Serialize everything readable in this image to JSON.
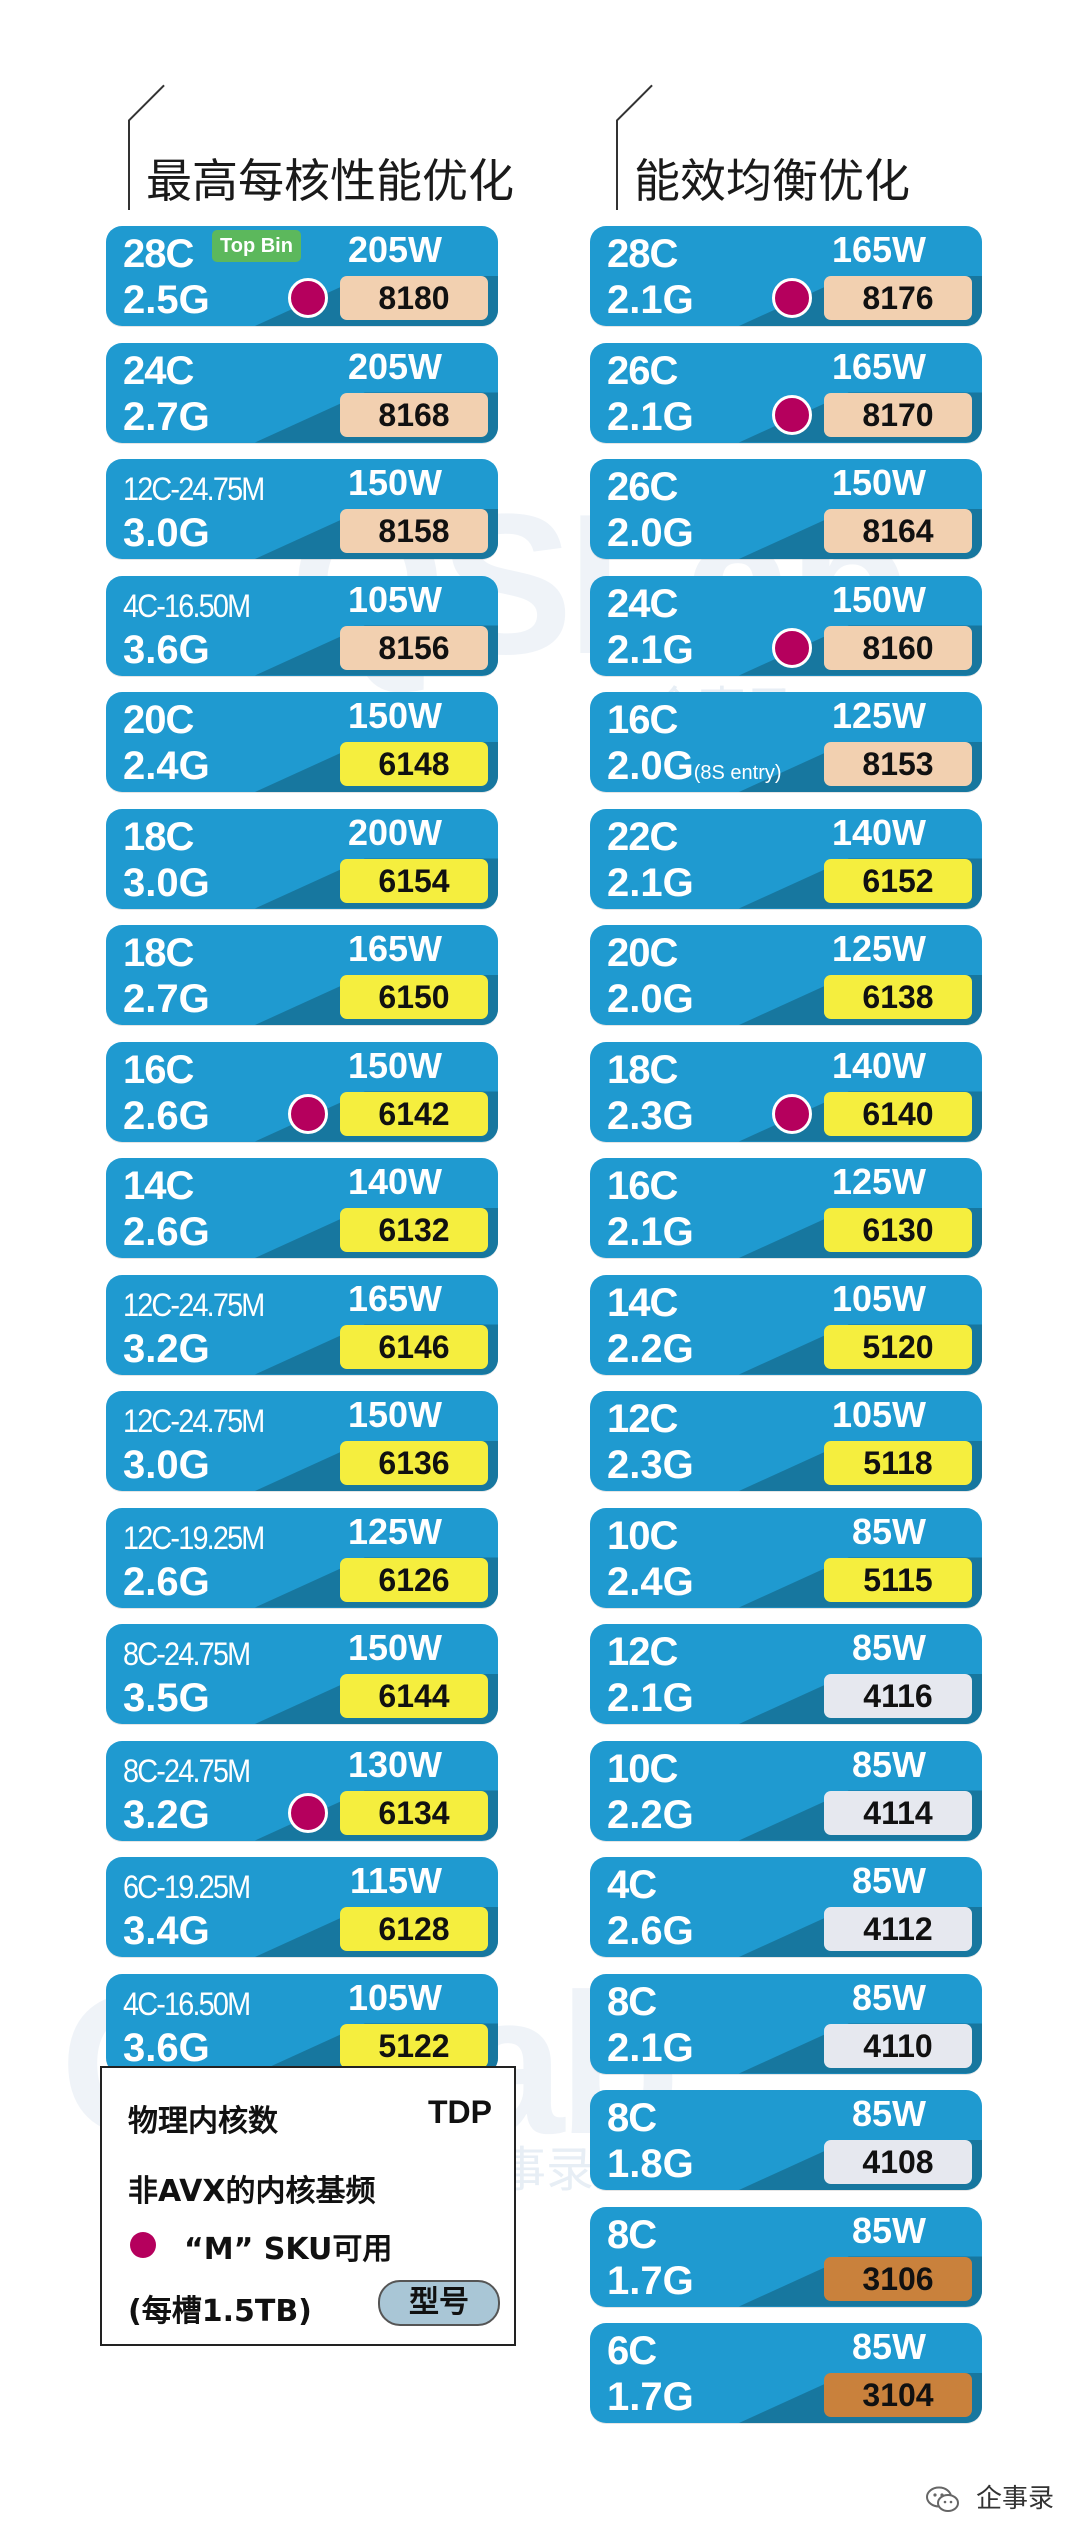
{
  "headers": {
    "left": "最高每核性能优化",
    "right": "能效均衡优化"
  },
  "watermark": {
    "text": "QSLab",
    "cn": "企事录"
  },
  "left_cards": [
    {
      "cores": "28C",
      "freq": "2.5G",
      "tdp": "205W",
      "model": "8180",
      "tier": "platinum",
      "m": true,
      "badge": "Top Bin"
    },
    {
      "cores": "24C",
      "freq": "2.7G",
      "tdp": "205W",
      "model": "8168",
      "tier": "platinum",
      "m": false
    },
    {
      "cores": "12C-24.75M",
      "freq": "3.0G",
      "tdp": "150W",
      "model": "8158",
      "tier": "platinum",
      "m": false
    },
    {
      "cores": "4C-16.50M",
      "freq": "3.6G",
      "tdp": "105W",
      "model": "8156",
      "tier": "platinum",
      "m": false
    },
    {
      "cores": "20C",
      "freq": "2.4G",
      "tdp": "150W",
      "model": "6148",
      "tier": "gold",
      "m": false
    },
    {
      "cores": "18C",
      "freq": "3.0G",
      "tdp": "200W",
      "model": "6154",
      "tier": "gold",
      "m": false
    },
    {
      "cores": "18C",
      "freq": "2.7G",
      "tdp": "165W",
      "model": "6150",
      "tier": "gold",
      "m": false
    },
    {
      "cores": "16C",
      "freq": "2.6G",
      "tdp": "150W",
      "model": "6142",
      "tier": "gold",
      "m": true
    },
    {
      "cores": "14C",
      "freq": "2.6G",
      "tdp": "140W",
      "model": "6132",
      "tier": "gold",
      "m": false
    },
    {
      "cores": "12C-24.75M",
      "freq": "3.2G",
      "tdp": "165W",
      "model": "6146",
      "tier": "gold",
      "m": false
    },
    {
      "cores": "12C-24.75M",
      "freq": "3.0G",
      "tdp": "150W",
      "model": "6136",
      "tier": "gold",
      "m": false
    },
    {
      "cores": "12C-19.25M",
      "freq": "2.6G",
      "tdp": "125W",
      "model": "6126",
      "tier": "gold",
      "m": false
    },
    {
      "cores": "8C-24.75M",
      "freq": "3.5G",
      "tdp": "150W",
      "model": "6144",
      "tier": "gold",
      "m": false
    },
    {
      "cores": "8C-24.75M",
      "freq": "3.2G",
      "tdp": "130W",
      "model": "6134",
      "tier": "gold",
      "m": true
    },
    {
      "cores": "6C-19.25M",
      "freq": "3.4G",
      "tdp": "115W",
      "model": "6128",
      "tier": "gold",
      "m": false
    },
    {
      "cores": "4C-16.50M",
      "freq": "3.6G",
      "tdp": "105W",
      "model": "5122",
      "tier": "gold",
      "m": false
    }
  ],
  "right_cards": [
    {
      "cores": "28C",
      "freq": "2.1G",
      "tdp": "165W",
      "model": "8176",
      "tier": "platinum",
      "m": true
    },
    {
      "cores": "26C",
      "freq": "2.1G",
      "tdp": "165W",
      "model": "8170",
      "tier": "platinum",
      "m": true
    },
    {
      "cores": "26C",
      "freq": "2.0G",
      "tdp": "150W",
      "model": "8164",
      "tier": "platinum",
      "m": false
    },
    {
      "cores": "24C",
      "freq": "2.1G",
      "tdp": "150W",
      "model": "8160",
      "tier": "platinum",
      "m": true
    },
    {
      "cores": "16C",
      "freq": "2.0G",
      "freq_note": "(8S entry)",
      "tdp": "125W",
      "model": "8153",
      "tier": "platinum",
      "m": false
    },
    {
      "cores": "22C",
      "freq": "2.1G",
      "tdp": "140W",
      "model": "6152",
      "tier": "gold",
      "m": false
    },
    {
      "cores": "20C",
      "freq": "2.0G",
      "tdp": "125W",
      "model": "6138",
      "tier": "gold",
      "m": false
    },
    {
      "cores": "18C",
      "freq": "2.3G",
      "tdp": "140W",
      "model": "6140",
      "tier": "gold",
      "m": true
    },
    {
      "cores": "16C",
      "freq": "2.1G",
      "tdp": "125W",
      "model": "6130",
      "tier": "gold",
      "m": false
    },
    {
      "cores": "14C",
      "freq": "2.2G",
      "tdp": "105W",
      "model": "5120",
      "tier": "gold",
      "m": false
    },
    {
      "cores": "12C",
      "freq": "2.3G",
      "tdp": "105W",
      "model": "5118",
      "tier": "gold",
      "m": false
    },
    {
      "cores": "10C",
      "freq": "2.4G",
      "tdp": "85W",
      "model": "5115",
      "tier": "gold",
      "m": false
    },
    {
      "cores": "12C",
      "freq": "2.1G",
      "tdp": "85W",
      "model": "4116",
      "tier": "silver",
      "m": false
    },
    {
      "cores": "10C",
      "freq": "2.2G",
      "tdp": "85W",
      "model": "4114",
      "tier": "silver",
      "m": false
    },
    {
      "cores": "4C",
      "freq": "2.6G",
      "tdp": "85W",
      "model": "4112",
      "tier": "silver",
      "m": false
    },
    {
      "cores": "8C",
      "freq": "2.1G",
      "tdp": "85W",
      "model": "4110",
      "tier": "silver",
      "m": false
    },
    {
      "cores": "8C",
      "freq": "1.8G",
      "tdp": "85W",
      "model": "4108",
      "tier": "silver",
      "m": false
    },
    {
      "cores": "8C",
      "freq": "1.7G",
      "tdp": "85W",
      "model": "3106",
      "tier": "bronze",
      "m": false
    },
    {
      "cores": "6C",
      "freq": "1.7G",
      "tdp": "85W",
      "model": "3104",
      "tier": "bronze",
      "m": false
    }
  ],
  "legend": {
    "cores": "物理内核数",
    "tdp": "TDP",
    "freq": "非AVX的内核基频",
    "m_sku": "“M” SKU可用",
    "memory": "(每槽1.5TB)",
    "model": "型号"
  },
  "footer": {
    "source": "企事录"
  }
}
